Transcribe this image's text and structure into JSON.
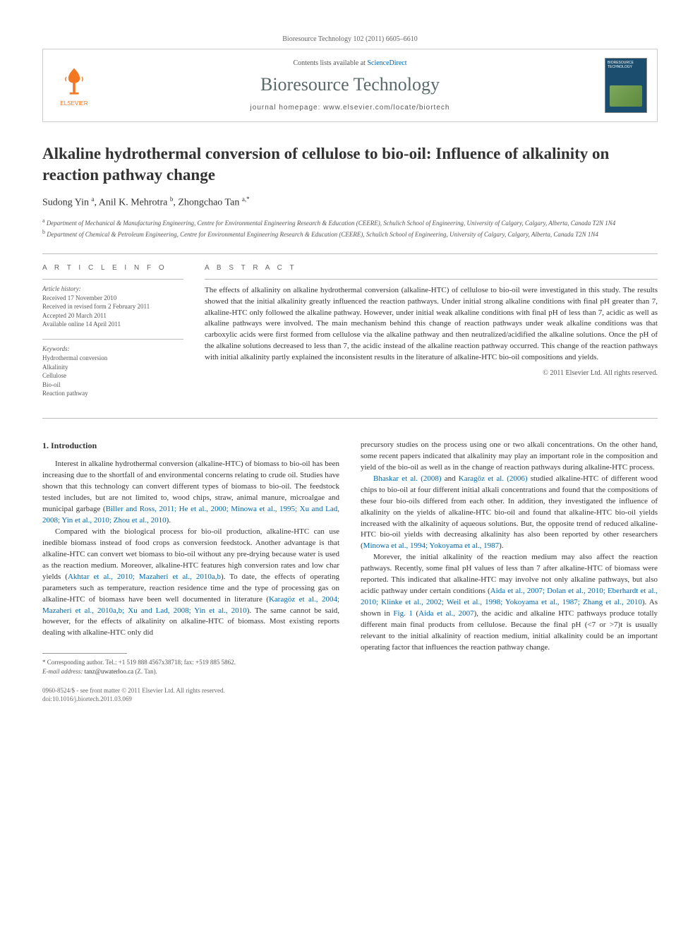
{
  "citation": "Bioresource Technology 102 (2011) 6605–6610",
  "header": {
    "contents_prefix": "Contents lists available at ",
    "contents_link": "ScienceDirect",
    "journal_title": "Bioresource Technology",
    "homepage": "journal homepage: www.elsevier.com/locate/biortech",
    "publisher": "ELSEVIER",
    "cover_label": "BIORESOURCE TECHNOLOGY"
  },
  "article": {
    "title": "Alkaline hydrothermal conversion of cellulose to bio-oil: Influence of alkalinity on reaction pathway change",
    "authors_html": "Sudong Yin <sup>a</sup>, Anil K. Mehrotra <sup>b</sup>, Zhongchao Tan <sup>a,*</sup>",
    "affiliations": [
      "a Department of Mechanical & Manufacturing Engineering, Centre for Environmental Engineering Research & Education (CEERE), Schulich School of Engineering, University of Calgary, Calgary, Alberta, Canada T2N 1N4",
      "b Department of Chemical & Petroleum Engineering, Centre for Environmental Engineering Research & Education (CEERE), Schulich School of Engineering, University of Calgary, Calgary, Alberta, Canada T2N 1N4"
    ]
  },
  "article_info": {
    "heading": "A R T I C L E   I N F O",
    "history_label": "Article history:",
    "history": [
      "Received 17 November 2010",
      "Received in revised form 2 February 2011",
      "Accepted 20 March 2011",
      "Available online 14 April 2011"
    ],
    "keywords_label": "Keywords:",
    "keywords": [
      "Hydrothermal conversion",
      "Alkalinity",
      "Cellulose",
      "Bio-oil",
      "Reaction pathway"
    ]
  },
  "abstract": {
    "heading": "A B S T R A C T",
    "text": "The effects of alkalinity on alkaline hydrothermal conversion (alkaline-HTC) of cellulose to bio-oil were investigated in this study. The results showed that the initial alkalinity greatly influenced the reaction pathways. Under initial strong alkaline conditions with final pH greater than 7, alkaline-HTC only followed the alkaline pathway. However, under initial weak alkaline conditions with final pH of less than 7, acidic as well as alkaline pathways were involved. The main mechanism behind this change of reaction pathways under weak alkaline conditions was that carboxylic acids were first formed from cellulose via the alkaline pathway and then neutralized/acidified the alkaline solutions. Once the pH of the alkaline solutions decreased to less than 7, the acidic instead of the alkaline reaction pathway occurred. This change of the reaction pathways with initial alkalinity partly explained the inconsistent results in the literature of alkaline-HTC bio-oil compositions and yields.",
    "copyright": "© 2011 Elsevier Ltd. All rights reserved."
  },
  "body": {
    "section1_heading": "1. Introduction",
    "col1": {
      "p1_pre": "Interest in alkaline hydrothermal conversion (alkaline-HTC) of biomass to bio-oil has been increasing due to the shortfall of and environmental concerns relating to crude oil. Studies have shown that this technology can convert different types of biomass to bio-oil. The feedstock tested includes, but are not limited to, wood chips, straw, animal manure, microalgae and municipal garbage (",
      "p1_cite": "Biller and Ross, 2011; He et al., 2000; Minowa et al., 1995; Xu and Lad, 2008; Yin et al., 2010; Zhou et al., 2010",
      "p1_post": ").",
      "p2_pre": "Compared with the biological process for bio-oil production, alkaline-HTC can use inedible biomass instead of food crops as conversion feedstock. Another advantage is that alkaline-HTC can convert wet biomass to bio-oil without any pre-drying because water is used as the reaction medium. Moreover, alkaline-HTC features high conversion rates and low char yields (",
      "p2_cite1": "Akhtar et al., 2010; Mazaheri et al., 2010a,b",
      "p2_mid": "). To date, the effects of operating parameters such as temperature, reaction residence time and the type of processing gas on alkaline-HTC of biomass have been well documented in literature (",
      "p2_cite2": "Karagöz et al., 2004; Mazaheri et al., 2010a,b; Xu and Lad, 2008; Yin et al., 2010",
      "p2_post": "). The same cannot be said, however, for the effects of alkalinity on alkaline-HTC of biomass. Most existing reports dealing with alkaline-HTC only did"
    },
    "col2": {
      "p1": "precursory studies on the process using one or two alkali concentrations. On the other hand, some recent papers indicated that alkalinity may play an important role in the composition and yield of the bio-oil as well as in the change of reaction pathways during alkaline-HTC process.",
      "p2_cite1": "Bhaskar et al. (2008)",
      "p2_mid1": " and ",
      "p2_cite2": "Karagöz et al. (2006)",
      "p2_mid2": " studied alkaline-HTC of different wood chips to bio-oil at four different initial alkali concentrations and found that the compositions of these four bio-oils differed from each other. In addition, they investigated the influence of alkalinity on the yields of alkaline-HTC bio-oil and found that alkaline-HTC bio-oil yields increased with the alkalinity of aqueous solutions. But, the opposite trend of reduced alkaline-HTC bio-oil yields with decreasing alkalinity has also been reported by other researchers (",
      "p2_cite3": "Minowa et al., 1994; Yokoyama et al., 1987",
      "p2_post": ").",
      "p3_pre": "Morever, the initial alkalinity of the reaction medium may also affect the reaction pathways. Recently, some final pH values of less than 7 after alkaline-HTC of biomass were reported. This indicated that alkaline-HTC may involve not only alkaline pathways, but also acidic pathway under certain conditions (",
      "p3_cite1": "Aida et al., 2007; Dolan et al., 2010; Eberhardt et al., 2010; Klinke et al., 2002; Weil et al., 1998; Yokoyama et al., 1987; Zhang et al., 2010",
      "p3_mid": "). As shown in ",
      "p3_cite2": "Fig. 1",
      "p3_mid2": " (",
      "p3_cite3": "Aida et al., 2007",
      "p3_post": "), the acidic and alkaline HTC pathways produce totally different main final products from cellulose. Because the final pH (<7 or >7)t is usually relevant to the initial alkalinity of reaction medium, initial alkalinity could be an important operating factor that influences the reaction pathway change."
    }
  },
  "footnote": {
    "corr": "* Corresponding author. Tel.: +1 519 888 4567x38718; fax: +519 885 5862.",
    "email_label": "E-mail address:",
    "email": "tanz@uwaterloo.ca",
    "email_name": "(Z. Tan)."
  },
  "footer": {
    "line1": "0960-8524/$ - see front matter © 2011 Elsevier Ltd. All rights reserved.",
    "line2": "doi:10.1016/j.biortech.2011.03.069"
  },
  "colors": {
    "link": "#0066aa",
    "elsevier_orange": "#f47721",
    "journal_title": "#5a6a6a",
    "cover_bg": "#1a4d6e"
  }
}
